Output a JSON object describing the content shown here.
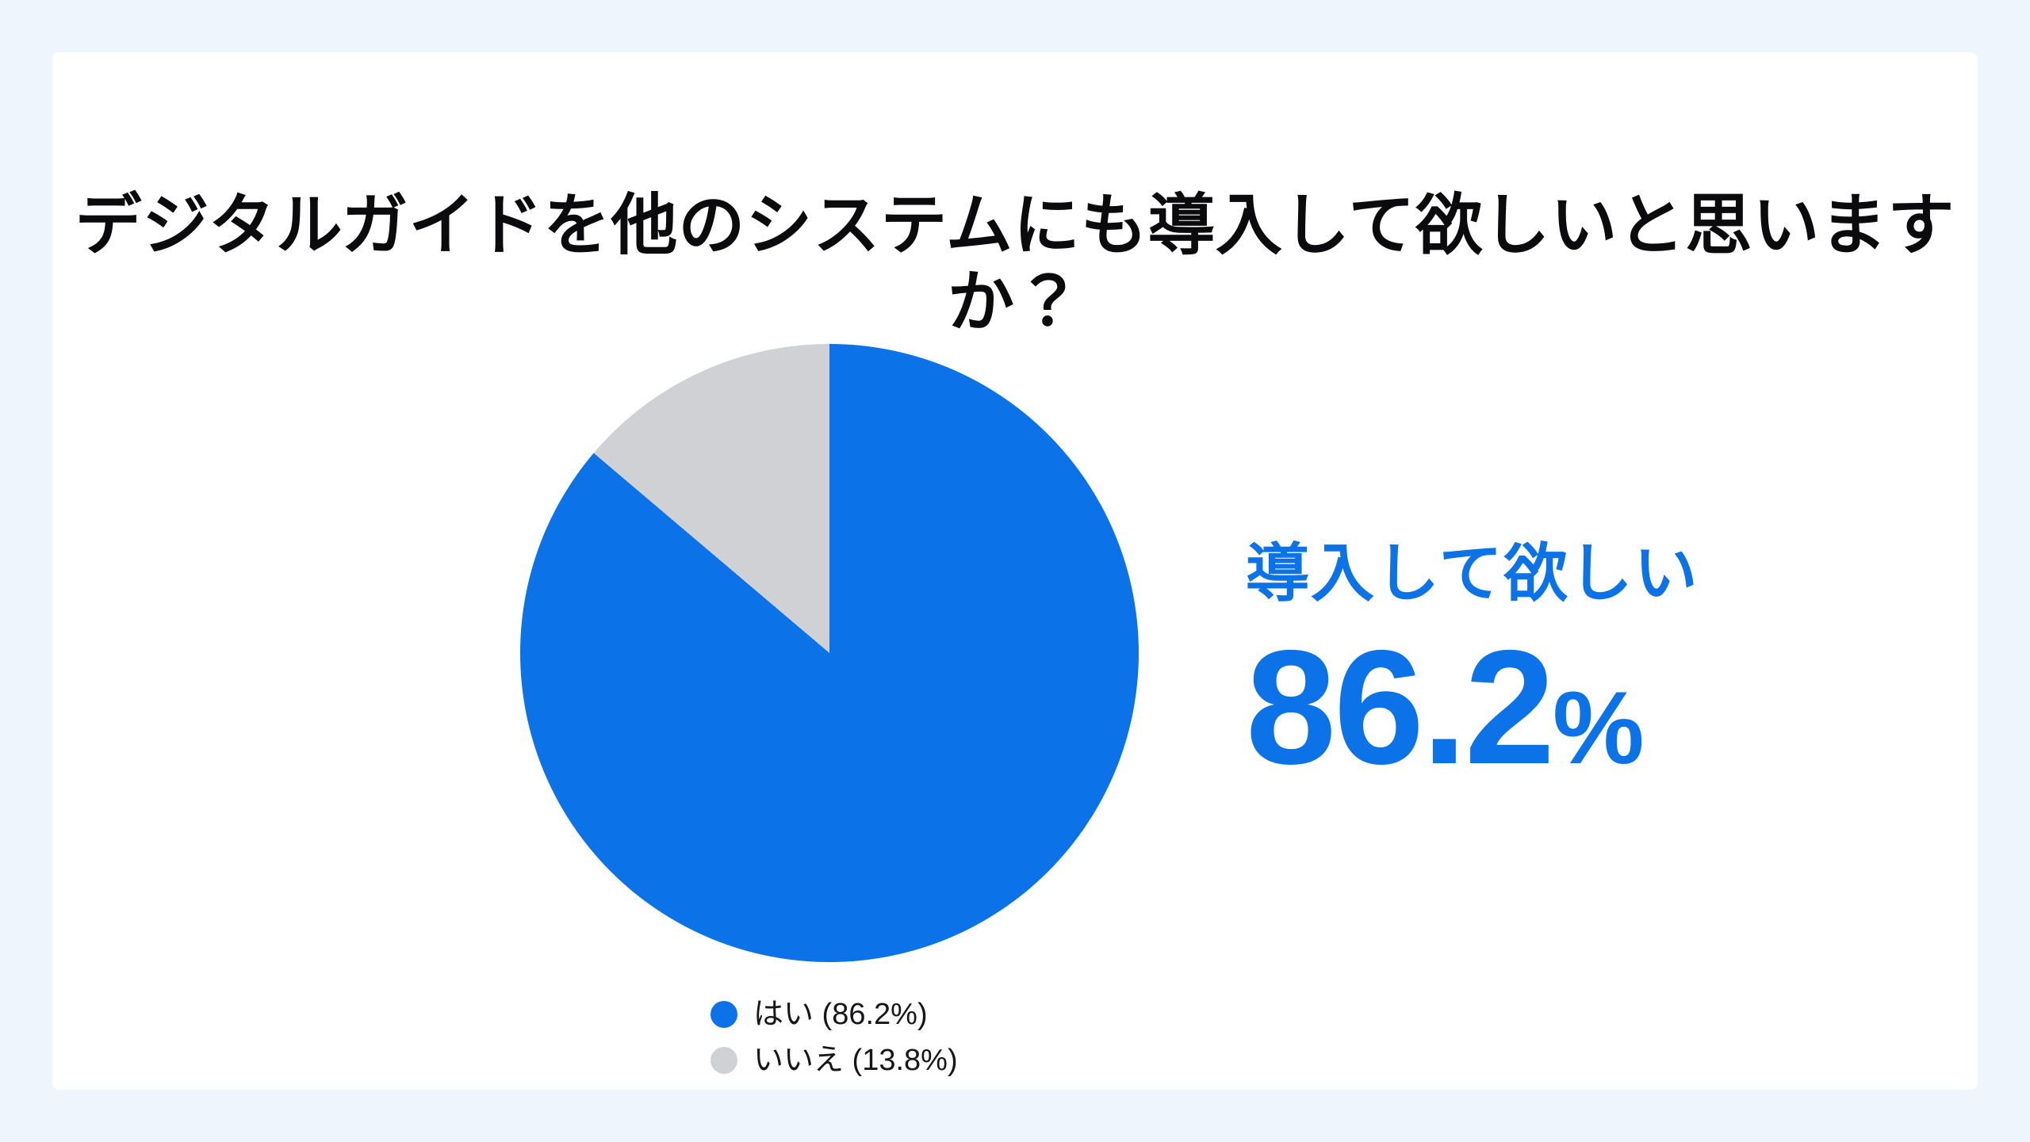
{
  "page": {
    "background_color": "#EFF5FD",
    "card_background_color": "#FFFFFF",
    "accent_color": "#0B72E8"
  },
  "title": "デジタルガイドを他のシステムにも導入して欲しいと思いますか？",
  "highlight": {
    "label": "導入して欲しい",
    "value": "86.2",
    "unit": "%",
    "color": "#0B72E8"
  },
  "chart_data": {
    "type": "pie",
    "title": "デジタルガイドを他のシステムにも導入して欲しいと思いますか？",
    "categories": [
      "はい",
      "いいえ"
    ],
    "values": [
      86.2,
      13.8
    ],
    "colors": [
      "#0B72E8",
      "#CFD1D4"
    ],
    "start_angle": "top",
    "direction": "clockwise",
    "legend_position": "below-pie-left-aligned",
    "legend": [
      {
        "label": "はい (86.2%)",
        "color": "#0B72E8"
      },
      {
        "label": "いいえ (13.8%)",
        "color": "#CFD1D4"
      }
    ],
    "annotation": {
      "label": "導入して欲しい",
      "value": 86.2,
      "unit": "%"
    }
  }
}
